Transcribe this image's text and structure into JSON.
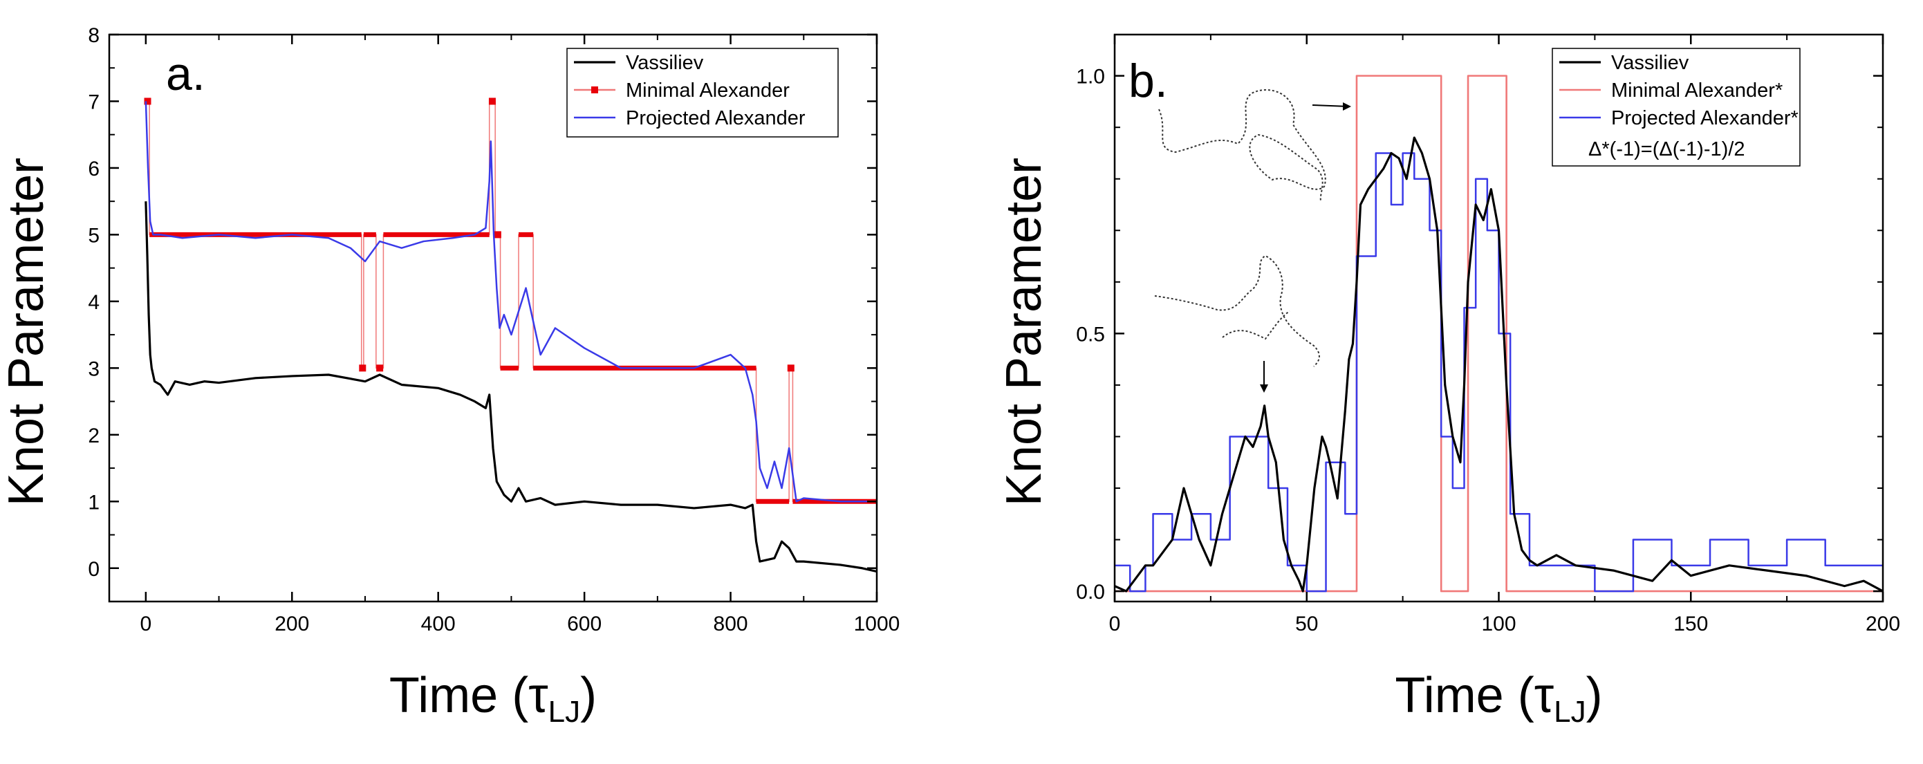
{
  "colors": {
    "vassiliev": "#000000",
    "minimal": "#e8000a",
    "minimal_thin": "#f07878",
    "projected": "#3a3ae8"
  },
  "chart_data": [
    {
      "type": "line",
      "panel_label": "a.",
      "xlabel_main": "Time (τ",
      "xlabel_sub": "LJ",
      "xlabel_close": ")",
      "ylabel": "Knot Parameter",
      "xlim": [
        -50,
        1000
      ],
      "ylim": [
        -0.5,
        8
      ],
      "xticks": [
        "0",
        "200",
        "400",
        "600",
        "800",
        "1000"
      ],
      "xtick_values": [
        0,
        200,
        400,
        600,
        800,
        1000
      ],
      "yticks": [
        "0",
        "1",
        "2",
        "3",
        "4",
        "5",
        "6",
        "7",
        "8"
      ],
      "ytick_values": [
        0,
        1,
        2,
        3,
        4,
        5,
        6,
        7,
        8
      ],
      "legend": [
        "Vassiliev",
        "Minimal Alexander",
        "Projected Alexander"
      ],
      "legend_position": "top-right",
      "series": [
        {
          "name": "Vassiliev",
          "x": [
            0,
            2,
            4,
            6,
            8,
            12,
            20,
            30,
            40,
            60,
            80,
            100,
            150,
            200,
            250,
            300,
            320,
            350,
            400,
            430,
            450,
            465,
            470,
            475,
            480,
            490,
            500,
            510,
            520,
            540,
            560,
            600,
            650,
            700,
            750,
            800,
            820,
            830,
            835,
            840,
            860,
            870,
            880,
            890,
            900,
            950,
            980,
            1000
          ],
          "y": [
            5.5,
            4.7,
            3.8,
            3.2,
            3.0,
            2.8,
            2.75,
            2.6,
            2.8,
            2.75,
            2.8,
            2.78,
            2.85,
            2.88,
            2.9,
            2.8,
            2.9,
            2.75,
            2.7,
            2.6,
            2.5,
            2.4,
            2.6,
            1.8,
            1.3,
            1.1,
            1.0,
            1.2,
            1.0,
            1.05,
            0.95,
            1.0,
            0.95,
            0.95,
            0.9,
            0.95,
            0.9,
            0.95,
            0.4,
            0.1,
            0.15,
            0.4,
            0.3,
            0.1,
            0.1,
            0.05,
            0.0,
            -0.05
          ]
        },
        {
          "name": "Minimal Alexander",
          "x": [
            0,
            5,
            5,
            295,
            295,
            298,
            298,
            315,
            315,
            325,
            325,
            470,
            470,
            478,
            478,
            485,
            485,
            510,
            510,
            530,
            530,
            835,
            835,
            880,
            880,
            885,
            885,
            1000
          ],
          "y": [
            7,
            7,
            5,
            5,
            3,
            3,
            5,
            5,
            3,
            3,
            5,
            5,
            7,
            7,
            5,
            5,
            3,
            3,
            5,
            5,
            3,
            3,
            1,
            1,
            3,
            3,
            1,
            1
          ]
        },
        {
          "name": "Projected Alexander",
          "x": [
            0,
            3,
            6,
            10,
            20,
            50,
            100,
            150,
            200,
            250,
            280,
            300,
            320,
            350,
            380,
            420,
            450,
            465,
            470,
            472,
            476,
            480,
            484,
            490,
            500,
            520,
            540,
            560,
            600,
            650,
            700,
            750,
            800,
            820,
            830,
            835,
            840,
            850,
            860,
            870,
            880,
            890,
            900,
            950,
            1000
          ],
          "y": [
            7.0,
            6.0,
            5.2,
            5.0,
            5.0,
            4.95,
            5.0,
            4.95,
            5.0,
            4.95,
            4.8,
            4.6,
            4.9,
            4.8,
            4.9,
            4.95,
            5.0,
            5.1,
            5.8,
            6.4,
            5.0,
            4.2,
            3.6,
            3.8,
            3.5,
            4.2,
            3.2,
            3.6,
            3.3,
            3.0,
            3.0,
            3.0,
            3.2,
            3.0,
            2.6,
            2.2,
            1.5,
            1.2,
            1.6,
            1.2,
            1.8,
            1.0,
            1.05,
            1.0,
            1.0
          ]
        }
      ]
    },
    {
      "type": "line",
      "panel_label": "b.",
      "xlabel_main": "Time (τ",
      "xlabel_sub": "LJ",
      "xlabel_close": ")",
      "ylabel": "Knot Parameter",
      "xlim": [
        0,
        200
      ],
      "ylim": [
        -0.02,
        1.08
      ],
      "xticks": [
        "0",
        "50",
        "100",
        "150",
        "200"
      ],
      "xtick_values": [
        0,
        50,
        100,
        150,
        200
      ],
      "yticks": [
        "0.0",
        "0.5",
        "1.0"
      ],
      "ytick_values": [
        0,
        0.5,
        1.0
      ],
      "legend": [
        "Vassiliev",
        "Minimal Alexander*",
        "Projected Alexander*"
      ],
      "legend_position": "top-right",
      "annotation": "Δ*(-1)=(Δ(-1)-1)/2",
      "series": [
        {
          "name": "Vassiliev",
          "x": [
            0,
            3,
            5,
            8,
            10,
            15,
            18,
            20,
            22,
            25,
            28,
            30,
            32,
            34,
            36,
            38,
            39,
            40,
            42,
            44,
            46,
            48,
            49,
            50,
            52,
            54,
            55,
            56,
            58,
            60,
            61,
            62,
            63,
            64,
            66,
            68,
            70,
            72,
            74,
            76,
            78,
            80,
            82,
            84,
            85,
            86,
            88,
            90,
            91,
            92,
            94,
            96,
            98,
            100,
            102,
            104,
            106,
            108,
            110,
            115,
            120,
            130,
            140,
            145,
            150,
            160,
            170,
            180,
            190,
            195,
            200
          ],
          "y": [
            0.01,
            0.0,
            0.02,
            0.05,
            0.05,
            0.1,
            0.2,
            0.15,
            0.1,
            0.05,
            0.15,
            0.2,
            0.25,
            0.3,
            0.28,
            0.32,
            0.36,
            0.3,
            0.25,
            0.1,
            0.05,
            0.02,
            0.0,
            0.05,
            0.2,
            0.3,
            0.28,
            0.25,
            0.18,
            0.35,
            0.45,
            0.48,
            0.6,
            0.75,
            0.78,
            0.8,
            0.82,
            0.85,
            0.84,
            0.8,
            0.88,
            0.85,
            0.8,
            0.7,
            0.55,
            0.4,
            0.3,
            0.25,
            0.4,
            0.6,
            0.75,
            0.72,
            0.78,
            0.7,
            0.4,
            0.15,
            0.08,
            0.06,
            0.05,
            0.07,
            0.05,
            0.04,
            0.02,
            0.06,
            0.03,
            0.05,
            0.04,
            0.03,
            0.01,
            0.02,
            0.0
          ]
        },
        {
          "name": "Minimal Alexander*",
          "x": [
            0,
            63,
            63,
            85,
            85,
            92,
            92,
            102,
            102,
            200
          ],
          "y": [
            0,
            0,
            1,
            1,
            0,
            0,
            1,
            1,
            0,
            0
          ]
        },
        {
          "name": "Projected Alexander*",
          "x": [
            0,
            4,
            4,
            8,
            8,
            10,
            10,
            15,
            15,
            20,
            20,
            25,
            25,
            30,
            30,
            35,
            35,
            40,
            40,
            45,
            45,
            50,
            50,
            55,
            55,
            60,
            60,
            63,
            63,
            68,
            68,
            72,
            72,
            75,
            75,
            78,
            78,
            82,
            82,
            85,
            85,
            88,
            88,
            91,
            91,
            94,
            94,
            97,
            97,
            100,
            100,
            103,
            103,
            108,
            108,
            115,
            115,
            125,
            125,
            135,
            135,
            145,
            145,
            155,
            155,
            165,
            165,
            175,
            175,
            185,
            185,
            200
          ],
          "y": [
            0.05,
            0.05,
            0.0,
            0.0,
            0.05,
            0.05,
            0.15,
            0.15,
            0.1,
            0.1,
            0.15,
            0.15,
            0.1,
            0.1,
            0.3,
            0.3,
            0.3,
            0.3,
            0.2,
            0.2,
            0.05,
            0.05,
            0.0,
            0.0,
            0.25,
            0.25,
            0.15,
            0.15,
            0.65,
            0.65,
            0.85,
            0.85,
            0.75,
            0.75,
            0.85,
            0.85,
            0.8,
            0.8,
            0.7,
            0.7,
            0.3,
            0.3,
            0.2,
            0.2,
            0.55,
            0.55,
            0.8,
            0.8,
            0.7,
            0.7,
            0.5,
            0.5,
            0.15,
            0.15,
            0.05,
            0.05,
            0.05,
            0.05,
            0.0,
            0.0,
            0.1,
            0.1,
            0.05,
            0.05,
            0.1,
            0.1,
            0.05,
            0.05,
            0.1,
            0.1,
            0.05,
            0.05
          ]
        }
      ]
    }
  ]
}
